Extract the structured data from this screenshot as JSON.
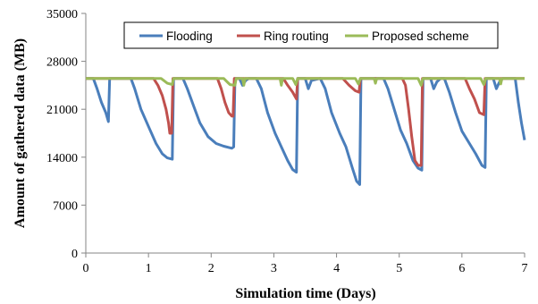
{
  "chart_data": {
    "type": "line",
    "title": "",
    "xlabel": "Simulation time (Days)",
    "ylabel": "Amount of gathered data (MB)",
    "xlim": [
      0,
      7
    ],
    "ylim": [
      0,
      35000
    ],
    "xticks": [
      "0",
      "1",
      "2",
      "3",
      "4",
      "5",
      "6",
      "7"
    ],
    "yticks": [
      "0",
      "7000",
      "14000",
      "21000",
      "28000",
      "35000"
    ],
    "grid": false,
    "legend_position": "top",
    "series": [
      {
        "name": "Flooding",
        "color": "#4a7ebb",
        "points": [
          [
            0,
            25500
          ],
          [
            0.12,
            25500
          ],
          [
            0.18,
            24000
          ],
          [
            0.25,
            22000
          ],
          [
            0.32,
            20500
          ],
          [
            0.36,
            19200
          ],
          [
            0.38,
            25500
          ],
          [
            0.72,
            25500
          ],
          [
            0.78,
            24000
          ],
          [
            0.88,
            21000
          ],
          [
            1.0,
            18500
          ],
          [
            1.12,
            16000
          ],
          [
            1.22,
            14500
          ],
          [
            1.3,
            13900
          ],
          [
            1.38,
            13700
          ],
          [
            1.4,
            25500
          ],
          [
            1.55,
            25500
          ],
          [
            1.62,
            24000
          ],
          [
            1.72,
            21500
          ],
          [
            1.82,
            19000
          ],
          [
            1.95,
            17000
          ],
          [
            2.08,
            16000
          ],
          [
            2.2,
            15600
          ],
          [
            2.33,
            15300
          ],
          [
            2.36,
            15500
          ],
          [
            2.38,
            25500
          ],
          [
            2.45,
            25500
          ],
          [
            2.5,
            24500
          ],
          [
            2.55,
            25200
          ],
          [
            2.6,
            25500
          ],
          [
            2.72,
            25500
          ],
          [
            2.8,
            24000
          ],
          [
            2.9,
            20500
          ],
          [
            3.02,
            17500
          ],
          [
            3.12,
            15500
          ],
          [
            3.22,
            13500
          ],
          [
            3.3,
            12200
          ],
          [
            3.36,
            11800
          ],
          [
            3.38,
            25500
          ],
          [
            3.5,
            25500
          ],
          [
            3.55,
            24000
          ],
          [
            3.6,
            25200
          ],
          [
            3.74,
            25500
          ],
          [
            3.82,
            24000
          ],
          [
            3.92,
            20500
          ],
          [
            4.05,
            17500
          ],
          [
            4.15,
            15500
          ],
          [
            4.25,
            12500
          ],
          [
            4.32,
            10500
          ],
          [
            4.37,
            10000
          ],
          [
            4.39,
            25500
          ],
          [
            4.75,
            25500
          ],
          [
            4.82,
            24000
          ],
          [
            4.92,
            21000
          ],
          [
            5.02,
            18000
          ],
          [
            5.12,
            16000
          ],
          [
            5.22,
            13500
          ],
          [
            5.3,
            12400
          ],
          [
            5.36,
            12100
          ],
          [
            5.38,
            25500
          ],
          [
            5.5,
            25500
          ],
          [
            5.55,
            24000
          ],
          [
            5.6,
            25000
          ],
          [
            5.66,
            25500
          ],
          [
            5.72,
            25500
          ],
          [
            5.8,
            23500
          ],
          [
            5.9,
            20500
          ],
          [
            6.0,
            17800
          ],
          [
            6.12,
            16000
          ],
          [
            6.22,
            14500
          ],
          [
            6.32,
            12800
          ],
          [
            6.37,
            12500
          ],
          [
            6.39,
            25500
          ],
          [
            6.5,
            25500
          ],
          [
            6.55,
            24000
          ],
          [
            6.6,
            25000
          ],
          [
            6.65,
            25500
          ],
          [
            6.85,
            25500
          ],
          [
            6.9,
            22000
          ],
          [
            6.95,
            19000
          ],
          [
            7.0,
            16500
          ]
        ]
      },
      {
        "name": "Ring routing",
        "color": "#c0504d",
        "points": [
          [
            0,
            25500
          ],
          [
            1.08,
            25500
          ],
          [
            1.15,
            24500
          ],
          [
            1.22,
            23000
          ],
          [
            1.28,
            21000
          ],
          [
            1.32,
            19000
          ],
          [
            1.34,
            17500
          ],
          [
            1.37,
            17500
          ],
          [
            1.39,
            25500
          ],
          [
            2.1,
            25500
          ],
          [
            2.16,
            24000
          ],
          [
            2.22,
            22000
          ],
          [
            2.28,
            20500
          ],
          [
            2.33,
            20000
          ],
          [
            2.35,
            20000
          ],
          [
            2.37,
            25500
          ],
          [
            3.15,
            25500
          ],
          [
            3.22,
            24500
          ],
          [
            3.3,
            23500
          ],
          [
            3.36,
            22500
          ],
          [
            3.38,
            25500
          ],
          [
            4.1,
            25500
          ],
          [
            4.2,
            24500
          ],
          [
            4.3,
            23700
          ],
          [
            4.36,
            23500
          ],
          [
            4.38,
            25500
          ],
          [
            5.05,
            25500
          ],
          [
            5.1,
            24500
          ],
          [
            5.15,
            21000
          ],
          [
            5.2,
            17000
          ],
          [
            5.25,
            13500
          ],
          [
            5.3,
            12800
          ],
          [
            5.35,
            12800
          ],
          [
            5.37,
            25500
          ],
          [
            6.05,
            25500
          ],
          [
            6.12,
            24000
          ],
          [
            6.2,
            22500
          ],
          [
            6.28,
            20500
          ],
          [
            6.35,
            20200
          ],
          [
            6.37,
            25500
          ],
          [
            7.0,
            25500
          ]
        ]
      },
      {
        "name": "Proposed scheme",
        "color": "#9bbb59",
        "points": [
          [
            0,
            25500
          ],
          [
            1.2,
            25500
          ],
          [
            1.3,
            24800
          ],
          [
            1.38,
            24600
          ],
          [
            1.4,
            25500
          ],
          [
            2.2,
            25500
          ],
          [
            2.3,
            24600
          ],
          [
            2.38,
            24500
          ],
          [
            2.4,
            25500
          ],
          [
            2.5,
            25500
          ],
          [
            2.52,
            24500
          ],
          [
            2.54,
            25500
          ],
          [
            3.1,
            25500
          ],
          [
            3.12,
            24500
          ],
          [
            3.14,
            25500
          ],
          [
            3.3,
            25500
          ],
          [
            3.35,
            24600
          ],
          [
            3.38,
            25500
          ],
          [
            4.3,
            25500
          ],
          [
            4.35,
            24700
          ],
          [
            4.38,
            25500
          ],
          [
            4.6,
            25500
          ],
          [
            4.62,
            24800
          ],
          [
            4.64,
            25500
          ],
          [
            5.3,
            25500
          ],
          [
            5.35,
            24500
          ],
          [
            5.38,
            25500
          ],
          [
            6.3,
            25500
          ],
          [
            6.35,
            24600
          ],
          [
            6.38,
            25500
          ],
          [
            6.6,
            25500
          ],
          [
            6.62,
            24700
          ],
          [
            6.64,
            25500
          ],
          [
            7.0,
            25500
          ]
        ]
      }
    ]
  }
}
